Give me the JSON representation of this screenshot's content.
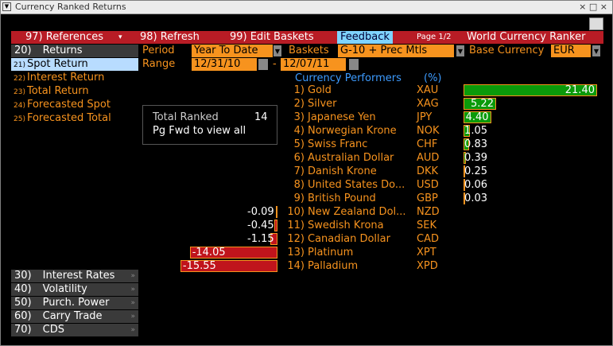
{
  "window": {
    "title": "Currency Ranked Returns"
  },
  "toolbar": {
    "references": "97) References",
    "refresh": "98) Refresh",
    "edit": "99) Edit Baskets",
    "feedback": "Feedback",
    "page": "Page 1/2",
    "app": "World Currency Ranker"
  },
  "menu": {
    "header": {
      "num": "20)",
      "label": "Returns"
    },
    "items": [
      {
        "num": "21)",
        "label": "Spot Return"
      },
      {
        "num": "22)",
        "label": "Interest Return"
      },
      {
        "num": "23)",
        "label": "Total Return"
      },
      {
        "num": "24)",
        "label": "Forecasted Spot"
      },
      {
        "num": "25)",
        "label": "Forecasted Total"
      }
    ]
  },
  "controls": {
    "period_label": "Period",
    "period": "Year To Date",
    "baskets_label": "Baskets",
    "baskets": "G-10 + Prec Mtls",
    "base_label": "Base Currency",
    "base": "EUR",
    "range_label": "Range",
    "start": "12/31/10",
    "sep": "-",
    "end": "12/07/11"
  },
  "info": {
    "label": "Total Ranked",
    "count": 14,
    "note": "Pg Fwd to view all"
  },
  "panel": {
    "title": "Currency Performers",
    "unit": "(%)"
  },
  "performers": [
    {
      "rank": "1)",
      "name": "Gold",
      "code": "XAU",
      "value": 21.4,
      "value_label": "21.40"
    },
    {
      "rank": "2)",
      "name": "Silver",
      "code": "XAG",
      "value": 5.22,
      "value_label": "5.22"
    },
    {
      "rank": "3)",
      "name": "Japanese Yen",
      "code": "JPY",
      "value": 4.4,
      "value_label": "4.40"
    },
    {
      "rank": "4)",
      "name": "Norwegian Krone",
      "code": "NOK",
      "value": 1.05,
      "value_label": "1.05"
    },
    {
      "rank": "5)",
      "name": "Swiss Franc",
      "code": "CHF",
      "value": 0.83,
      "value_label": "0.83"
    },
    {
      "rank": "6)",
      "name": "Australian Dollar",
      "code": "AUD",
      "value": 0.39,
      "value_label": "0.39"
    },
    {
      "rank": "7)",
      "name": "Danish Krone",
      "code": "DKK",
      "value": 0.25,
      "value_label": "0.25"
    },
    {
      "rank": "8)",
      "name": "United States Do...",
      "code": "USD",
      "value": 0.06,
      "value_label": "0.06"
    },
    {
      "rank": "9)",
      "name": "British Pound",
      "code": "GBP",
      "value": 0.03,
      "value_label": "0.03"
    },
    {
      "rank": "10)",
      "name": "New Zealand Dol...",
      "code": "NZD",
      "value": -0.09,
      "value_label": "-0.09"
    },
    {
      "rank": "11)",
      "name": "Swedish Krona",
      "code": "SEK",
      "value": -0.45,
      "value_label": "-0.45"
    },
    {
      "rank": "12)",
      "name": "Canadian Dollar",
      "code": "CAD",
      "value": -1.15,
      "value_label": "-1.15"
    },
    {
      "rank": "13)",
      "name": "Platinum",
      "code": "XPT",
      "value": -14.05,
      "value_label": "-14.05"
    },
    {
      "rank": "14)",
      "name": "Palladium",
      "code": "XPD",
      "value": -15.55,
      "value_label": "-15.55"
    }
  ],
  "sections": [
    {
      "num": "30)",
      "label": "Interest Rates"
    },
    {
      "num": "40)",
      "label": "Volatility"
    },
    {
      "num": "50)",
      "label": "Purch. Power"
    },
    {
      "num": "60)",
      "label": "Carry Trade"
    },
    {
      "num": "70)",
      "label": "CDS"
    }
  ]
}
